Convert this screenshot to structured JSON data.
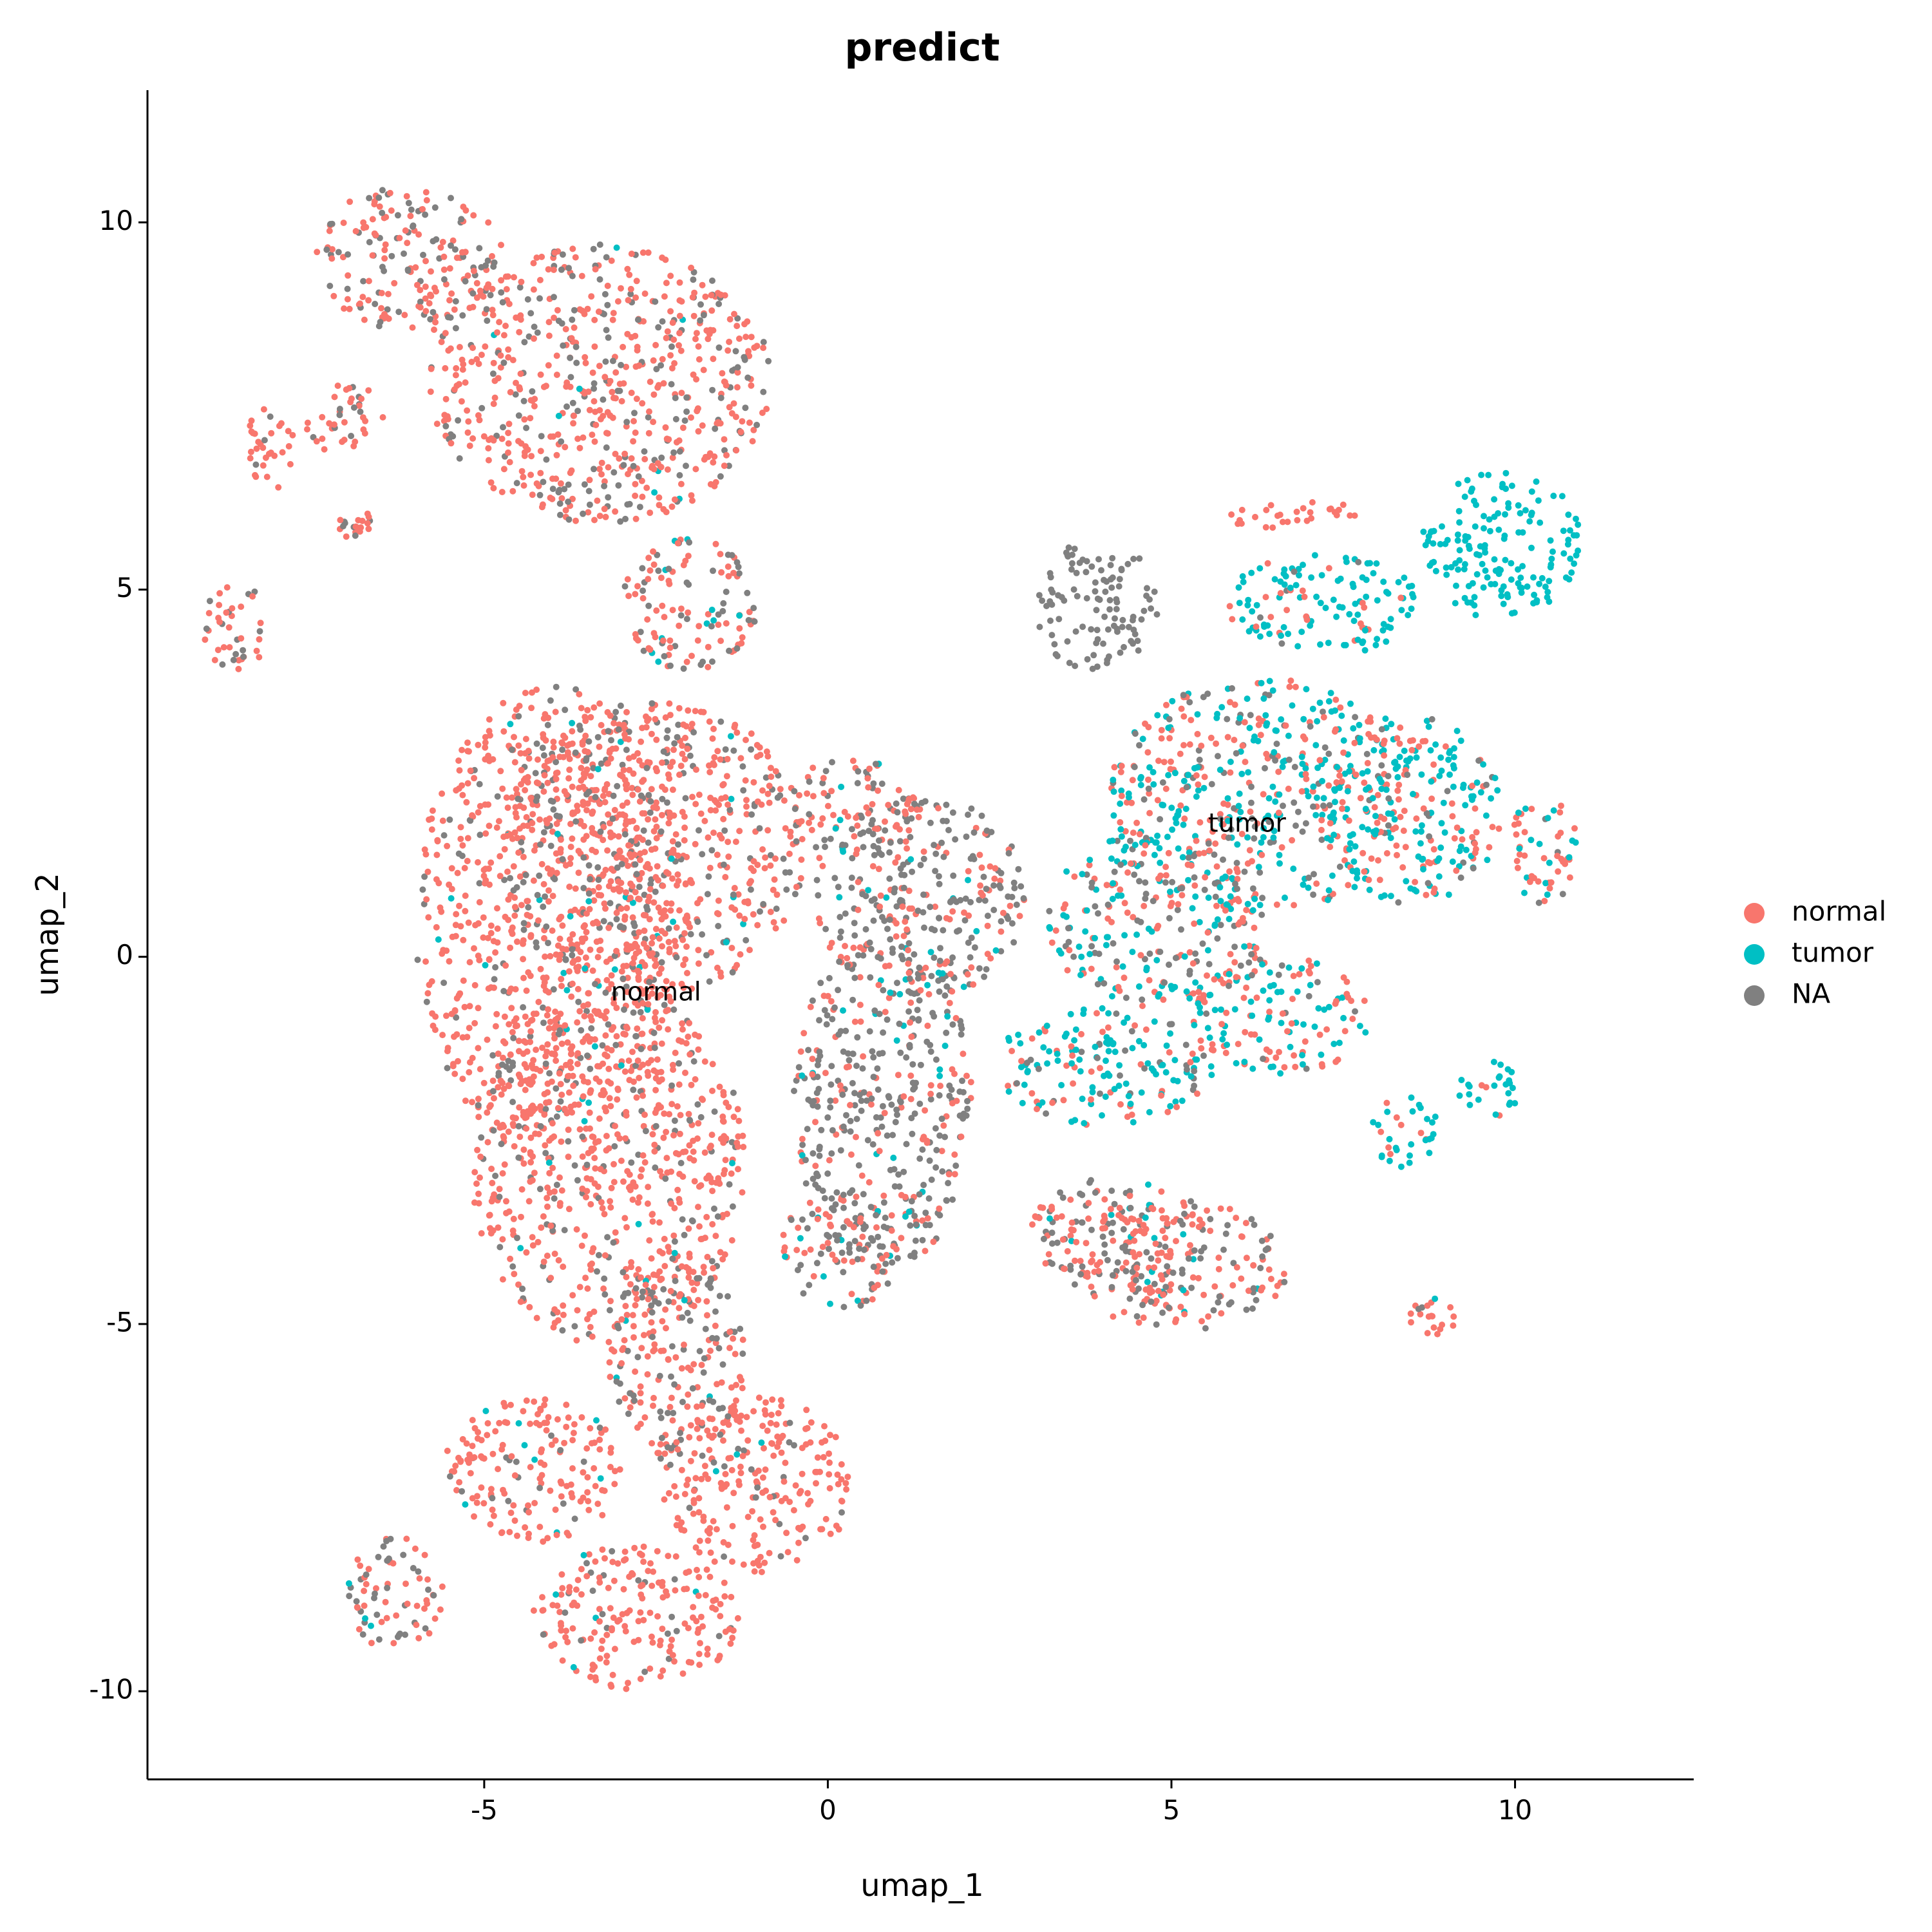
{
  "chart_data": {
    "type": "scatter",
    "title": "predict",
    "xlabel": "umap_1",
    "ylabel": "umap_2",
    "xlim": [
      -9.9,
      12.6
    ],
    "ylim": [
      -11.2,
      11.8
    ],
    "xticks": [
      "-5",
      "0",
      "5",
      "10"
    ],
    "yticks": [
      "-10",
      "-5",
      "0",
      "5",
      "10"
    ],
    "grid": false,
    "legend_position": "right",
    "series": [
      {
        "name": "normal",
        "color": "#F8766D"
      },
      {
        "name": "tumor",
        "color": "#00BFC4"
      },
      {
        "name": "NA",
        "color": "#808080"
      }
    ],
    "cluster_labels": [
      {
        "text": "normal",
        "x": -2.5,
        "y": -0.5
      },
      {
        "text": "tumor",
        "x": 6.1,
        "y": 1.8
      }
    ],
    "regions": [
      {
        "x": -6.1,
        "y": 9.5,
        "rx": 1.4,
        "ry": 1.0,
        "mix": [
          0.6,
          0.0,
          0.4
        ]
      },
      {
        "x": -3.3,
        "y": 7.8,
        "rx": 2.5,
        "ry": 1.9,
        "mix": [
          0.7,
          0.02,
          0.28
        ]
      },
      {
        "x": -2.0,
        "y": 4.8,
        "rx": 1.0,
        "ry": 0.9,
        "mix": [
          0.55,
          0.05,
          0.4
        ]
      },
      {
        "x": -8.1,
        "y": 6.9,
        "rx": 0.4,
        "ry": 0.6,
        "mix": [
          0.9,
          0.0,
          0.1
        ]
      },
      {
        "x": -8.6,
        "y": 4.5,
        "rx": 0.5,
        "ry": 0.6,
        "mix": [
          0.6,
          0.0,
          0.4
        ]
      },
      {
        "x": -6.9,
        "y": 5.9,
        "rx": 0.25,
        "ry": 0.25,
        "mix": [
          0.7,
          0.0,
          0.3
        ]
      },
      {
        "x": -7.0,
        "y": 7.3,
        "rx": 0.6,
        "ry": 0.5,
        "mix": [
          0.85,
          0.0,
          0.15
        ]
      },
      {
        "x": -4.0,
        "y": 0.5,
        "rx": 2.0,
        "ry": 3.2,
        "mix": [
          0.85,
          0.02,
          0.13
        ]
      },
      {
        "x": -2.5,
        "y": 1.5,
        "rx": 2.2,
        "ry": 2.0,
        "mix": [
          0.7,
          0.02,
          0.28
        ]
      },
      {
        "x": -3.2,
        "y": -2.8,
        "rx": 2.0,
        "ry": 2.5,
        "mix": [
          0.8,
          0.02,
          0.18
        ]
      },
      {
        "x": -4.3,
        "y": -7.0,
        "rx": 1.3,
        "ry": 1.0,
        "mix": [
          0.85,
          0.02,
          0.13
        ]
      },
      {
        "x": -1.0,
        "y": -7.2,
        "rx": 1.4,
        "ry": 1.2,
        "mix": [
          0.9,
          0.02,
          0.08
        ]
      },
      {
        "x": -2.8,
        "y": -9.0,
        "rx": 1.5,
        "ry": 1.0,
        "mix": [
          0.85,
          0.02,
          0.13
        ]
      },
      {
        "x": -2.2,
        "y": -5.5,
        "rx": 1.0,
        "ry": 1.5,
        "mix": [
          0.55,
          0.05,
          0.4
        ]
      },
      {
        "x": -6.3,
        "y": -8.7,
        "rx": 0.7,
        "ry": 0.8,
        "mix": [
          0.45,
          0.05,
          0.5
        ]
      },
      {
        "x": 0.8,
        "y": -2.0,
        "rx": 1.3,
        "ry": 2.3,
        "mix": [
          0.3,
          0.05,
          0.65
        ]
      },
      {
        "x": 1.3,
        "y": 0.8,
        "rx": 1.6,
        "ry": 1.4,
        "mix": [
          0.3,
          0.05,
          0.65
        ]
      },
      {
        "x": 0.2,
        "y": -4.0,
        "rx": 0.9,
        "ry": 0.8,
        "mix": [
          0.4,
          0.05,
          0.55
        ]
      },
      {
        "x": 4.2,
        "y": -3.8,
        "rx": 1.3,
        "ry": 0.8,
        "mix": [
          0.5,
          0.05,
          0.45
        ]
      },
      {
        "x": 5.1,
        "y": -4.2,
        "rx": 1.6,
        "ry": 0.9,
        "mix": [
          0.55,
          0.05,
          0.4
        ]
      },
      {
        "x": 3.9,
        "y": 4.8,
        "rx": 0.9,
        "ry": 0.9,
        "mix": [
          0.0,
          0.0,
          1.0
        ]
      },
      {
        "x": 6.3,
        "y": 2.2,
        "rx": 2.2,
        "ry": 1.6,
        "mix": [
          0.35,
          0.45,
          0.2
        ]
      },
      {
        "x": 8.5,
        "y": 2.0,
        "rx": 1.3,
        "ry": 1.3,
        "mix": [
          0.3,
          0.6,
          0.1
        ]
      },
      {
        "x": 10.4,
        "y": 1.5,
        "rx": 0.5,
        "ry": 0.8,
        "mix": [
          0.6,
          0.2,
          0.2
        ]
      },
      {
        "x": 4.8,
        "y": 0.5,
        "rx": 1.6,
        "ry": 1.2,
        "mix": [
          0.4,
          0.35,
          0.25
        ]
      },
      {
        "x": 4.0,
        "y": -1.5,
        "rx": 1.6,
        "ry": 0.8,
        "mix": [
          0.25,
          0.6,
          0.15
        ]
      },
      {
        "x": 6.6,
        "y": -0.8,
        "rx": 1.3,
        "ry": 0.8,
        "mix": [
          0.4,
          0.5,
          0.1
        ]
      },
      {
        "x": 7.2,
        "y": 4.8,
        "rx": 1.4,
        "ry": 0.7,
        "mix": [
          0.15,
          0.8,
          0.05
        ]
      },
      {
        "x": 9.8,
        "y": 5.6,
        "rx": 1.2,
        "ry": 1.0,
        "mix": [
          0.0,
          1.0,
          0.0
        ]
      },
      {
        "x": 6.9,
        "y": 6.0,
        "rx": 1.1,
        "ry": 0.2,
        "mix": [
          1.0,
          0.0,
          0.0
        ]
      },
      {
        "x": 8.4,
        "y": -2.4,
        "rx": 0.5,
        "ry": 0.5,
        "mix": [
          0.15,
          0.85,
          0.0
        ]
      },
      {
        "x": 9.6,
        "y": -1.8,
        "rx": 0.5,
        "ry": 0.4,
        "mix": [
          0.05,
          0.95,
          0.0
        ]
      },
      {
        "x": 8.8,
        "y": -4.9,
        "rx": 0.35,
        "ry": 0.25,
        "mix": [
          0.85,
          0.1,
          0.05
        ]
      },
      {
        "x": 0.3,
        "y": 2.0,
        "rx": 1.0,
        "ry": 0.7,
        "mix": [
          0.5,
          0.05,
          0.45
        ]
      }
    ]
  }
}
